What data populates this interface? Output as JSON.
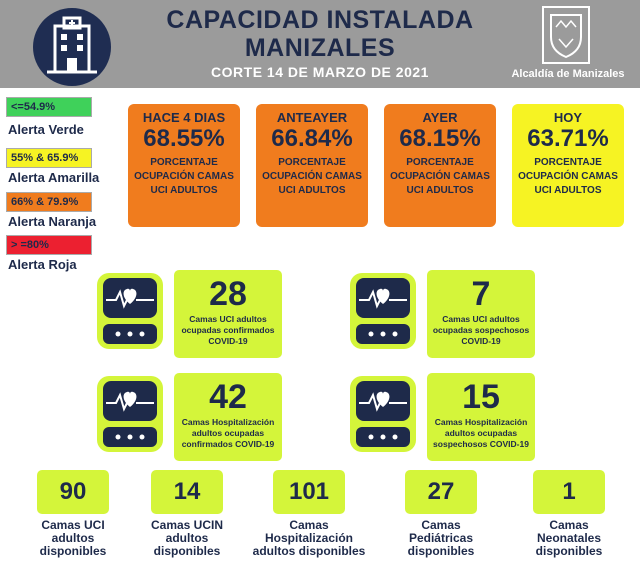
{
  "header": {
    "title_line1": "CAPACIDAD INSTALADA",
    "title_line2": "MANIZALES",
    "subtitle": "CORTE 14  DE MARZO DE 2021",
    "logo_label": "Alcaldía de Manizales",
    "hospital_icon": "hospital-building-icon"
  },
  "legend": [
    {
      "range": "<=54.9%",
      "label": "Alerta Verde",
      "color": "#3fd15a"
    },
    {
      "range": "55% & 65.9%",
      "label": "Alerta Amarilla",
      "color": "#f6f323"
    },
    {
      "range": "66% & 79.9%",
      "label": "Alerta Naranja",
      "color": "#f07c1e"
    },
    {
      "range": "> =80%",
      "label": "Alerta Roja",
      "color": "#ec2030"
    }
  ],
  "days": [
    {
      "title": "HACE 4 DIAS",
      "value": "68.55%",
      "desc": "PORCENTAJE OCUPACIÓN CAMAS UCI ADULTOS",
      "color": "#f07c1e"
    },
    {
      "title": "ANTEAYER",
      "value": "66.84%",
      "desc": "PORCENTAJE OCUPACIÓN CAMAS UCI ADULTOS",
      "color": "#f07c1e"
    },
    {
      "title": "AYER",
      "value": "68.15%",
      "desc": "PORCENTAJE OCUPACIÓN CAMAS UCI ADULTOS",
      "color": "#f07c1e"
    },
    {
      "title": "HOY",
      "value": "63.71%",
      "desc": "PORCENTAJE OCUPACIÓN CAMAS UCI ADULTOS",
      "color": "#f6f323"
    }
  ],
  "stats": [
    {
      "value": "28",
      "desc": "Camas UCI adultos ocupadas confirmados COVID-19",
      "icon": "heart-monitor-icon"
    },
    {
      "value": "7",
      "desc": "Camas UCI adultos ocupadas sospechosos COVID-19",
      "icon": "heart-monitor-icon"
    },
    {
      "value": "42",
      "desc": "Camas  Hospitalización adultos ocupadas confirmados COVID-19",
      "icon": "heart-monitor-icon"
    },
    {
      "value": "15",
      "desc": "Camas  Hospitalización adultos ocupadas sospechosos COVID-19",
      "icon": "heart-monitor-icon"
    }
  ],
  "available": [
    {
      "value": "90",
      "desc": "Camas UCI adultos disponibles"
    },
    {
      "value": "14",
      "desc": "Camas UCIN adultos disponibles"
    },
    {
      "value": "101",
      "desc": "Camas Hospitalización adultos disponibles"
    },
    {
      "value": "27",
      "desc": "Camas Pediátricas disponibles"
    },
    {
      "value": "1",
      "desc": "Camas Neonatales disponibles"
    }
  ],
  "colors": {
    "header_bg": "#9b9b9b",
    "navy": "#1e2a4a",
    "lime": "#d4f53a"
  }
}
